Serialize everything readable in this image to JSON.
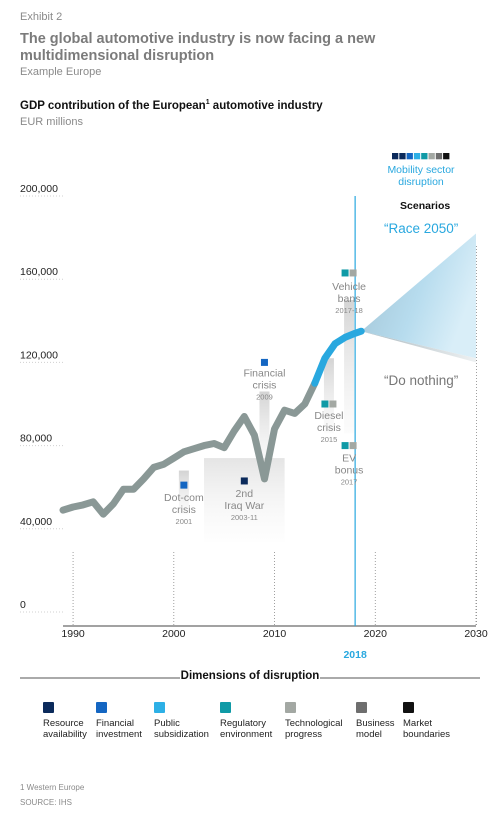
{
  "exhibit": "Exhibit 2",
  "headline": "The global automotive industry is now facing a new multidimensional disruption",
  "subhead": "Example Europe",
  "chart_title": "GDP contribution of the European",
  "chart_title_sup": "1",
  "chart_title_rest": " automotive industry",
  "chart_unit": "EUR millions",
  "colors": {
    "resource_availability": "#0b2a5b",
    "financial_investment": "#1466c2",
    "public_subsidization": "#2db0e6",
    "regulatory_environment": "#0f9aa6",
    "technological_progress": "#a3a8a3",
    "business_model": "#6e6e6e",
    "market_boundaries": "#111111",
    "history_line": "#8a9896",
    "recent_line": "#29a8df"
  },
  "chart_data": {
    "type": "line",
    "title": "GDP contribution of the European automotive industry",
    "ylabel": "EUR millions",
    "xlim": [
      1989,
      2030
    ],
    "ylim": [
      0,
      200000
    ],
    "x_ticks": [
      1990,
      2000,
      2010,
      2020,
      2030
    ],
    "y_ticks": [
      0,
      40000,
      80000,
      120000,
      160000,
      200000
    ],
    "y_tick_labels": [
      "0",
      "40,000",
      "80,000",
      "120,000",
      "160,000",
      "200,000"
    ],
    "x_tick_labels": [
      "1990",
      "2000",
      "2010",
      "2020",
      "2030"
    ],
    "highlight_year": 2018,
    "highlight_label": "2018",
    "series": [
      {
        "role": "history",
        "x": [
          1989,
          1990,
          1991,
          1992,
          1993,
          1994,
          1995,
          1996,
          1997,
          1998,
          1999,
          2000,
          2001,
          2002,
          2003,
          2004,
          2005,
          2006,
          2007,
          2008,
          2009,
          2010,
          2011,
          2012,
          2013,
          2014
        ],
        "y": [
          49000,
          50500,
          51500,
          53000,
          47000,
          52000,
          59000,
          59000,
          64000,
          69500,
          71000,
          74000,
          77000,
          78500,
          80000,
          81000,
          79000,
          87000,
          94000,
          85000,
          64000,
          88000,
          97000,
          95500,
          100000,
          110000
        ]
      },
      {
        "role": "recent",
        "x": [
          2014,
          2015,
          2016,
          2017,
          2018,
          2018.6
        ],
        "y": [
          110000,
          122000,
          129000,
          132000,
          134000,
          135000
        ]
      }
    ],
    "scenarios": {
      "title": "Scenarios",
      "race": {
        "label": "“Race 2050”",
        "start": 135000,
        "end_low": 122000,
        "end_high": 182000
      },
      "nothing": {
        "label": "“Do nothing”",
        "end": 120000
      }
    },
    "events": [
      {
        "label": "Dot-com\ncrisis",
        "year": "2001",
        "x": 2001,
        "marker_y": 61000,
        "bar_top": 68000,
        "bar_bottom": 47000,
        "marker_colors": [
          "#1466c2"
        ]
      },
      {
        "label": "2nd\nIraq War",
        "year": "2003-11",
        "x": 2007,
        "marker_y": 63000,
        "marker_colors": [
          "#0b2a5b"
        ]
      },
      {
        "label": "Financial\ncrisis",
        "year": "2009",
        "x": 2009,
        "marker_y": 120000,
        "bar_top": 106000,
        "bar_bottom": 70000,
        "marker_colors": [
          "#1466c2"
        ]
      },
      {
        "label": "Vehicle\nbans",
        "year": "2017-18",
        "x": 2017.4,
        "marker_y": 163000,
        "marker_colors": [
          "#0f9aa6",
          "#a3a8a3"
        ]
      },
      {
        "label": "Diesel\ncrisis",
        "year": "2015",
        "x": 2015.4,
        "marker_y": 100000,
        "bar_top": 122000,
        "bar_bottom": 86000,
        "marker_colors": [
          "#0f9aa6",
          "#a3a8a3"
        ]
      },
      {
        "label": "EV\nbonus",
        "year": "2017",
        "x": 2017.4,
        "marker_y": 80000,
        "marker_colors": [
          "#0f9aa6",
          "#a3a8a3"
        ]
      }
    ],
    "mobility_label": "Mobility sector\ndisruption",
    "mobility_marker_colors": [
      "#0b2a5b",
      "#0b2a5b",
      "#1466c2",
      "#2db0e6",
      "#0f9aa6",
      "#a3a8a3",
      "#6e6e6e",
      "#111111"
    ]
  },
  "dimensions_title": "Dimensions of disruption",
  "dimensions": [
    {
      "label": "Resource\navailability",
      "color": "#0b2a5b"
    },
    {
      "label": "Financial\ninvestment",
      "color": "#1466c2"
    },
    {
      "label": "Public\nsubsidization",
      "color": "#2db0e6"
    },
    {
      "label": "Regulatory\nenvironment",
      "color": "#0f9aa6"
    },
    {
      "label": "Technological\nprogress",
      "color": "#a3a8a3"
    },
    {
      "label": "Business\nmodel",
      "color": "#6e6e6e"
    },
    {
      "label": "Market\nboundaries",
      "color": "#111111"
    }
  ],
  "footnote": "1 Western Europe",
  "source": "SOURCE: IHS"
}
